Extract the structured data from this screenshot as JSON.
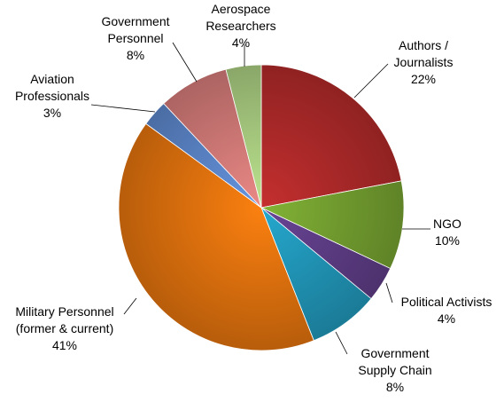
{
  "chart_data": {
    "type": "pie",
    "title": "",
    "slices": [
      {
        "label": [
          "Authors /",
          "Journalists"
        ],
        "value": 22,
        "display": "22%",
        "color": "#b02a2a"
      },
      {
        "label": [
          "NGO"
        ],
        "value": 10,
        "display": "10%",
        "color": "#74a030"
      },
      {
        "label": [
          "Political Activists"
        ],
        "value": 4,
        "display": "4%",
        "color": "#5e3d86"
      },
      {
        "label": [
          "Government",
          "Supply Chain"
        ],
        "value": 8,
        "display": "8%",
        "color": "#2196b8"
      },
      {
        "label": [
          "Military Personnel",
          "(former & current)"
        ],
        "value": 41,
        "display": "41%",
        "color": "#e0720e"
      },
      {
        "label": [
          "Aviation",
          "Professionals"
        ],
        "value": 3,
        "display": "3%",
        "color": "#5b85c8"
      },
      {
        "label": [
          "Government",
          "Personnel"
        ],
        "value": 8,
        "display": "8%",
        "color": "#d27a78"
      },
      {
        "label": [
          "Aerospace",
          "Researchers"
        ],
        "value": 4,
        "display": "4%",
        "color": "#a8cc80"
      }
    ],
    "legend": "none"
  }
}
